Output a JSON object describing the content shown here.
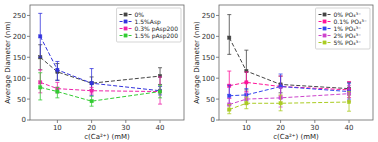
{
  "chart_data": [
    {
      "type": "line",
      "x": [
        5,
        10,
        20,
        40
      ],
      "series": [
        {
          "name": "0%",
          "color": "#444444",
          "marker": "square",
          "line_style": "dashed",
          "values": [
            150,
            115,
            88,
            105
          ],
          "yerr_lo": [
            30,
            20,
            15,
            20
          ],
          "yerr_hi": [
            30,
            20,
            15,
            20
          ]
        },
        {
          "name": "1.5%Asp",
          "color": "#3333dd",
          "marker": "square",
          "line_style": "dashed",
          "values": [
            200,
            120,
            88,
            70
          ],
          "yerr_lo": [
            50,
            25,
            30,
            10
          ],
          "yerr_hi": [
            55,
            20,
            35,
            10
          ]
        },
        {
          "name": "0.3% pAsp200",
          "color": "#ee22aa",
          "marker": "square",
          "line_style": "dashed",
          "values": [
            90,
            75,
            70,
            68
          ],
          "yerr_lo": [
            25,
            10,
            8,
            30
          ],
          "yerr_hi": [
            30,
            15,
            8,
            35
          ]
        },
        {
          "name": "1.5% pAsp200",
          "color": "#33cc33",
          "marker": "square",
          "line_style": "dashed",
          "values": [
            78,
            68,
            45,
            68
          ],
          "yerr_lo": [
            30,
            15,
            12,
            15
          ],
          "yerr_hi": [
            35,
            10,
            12,
            15
          ]
        }
      ],
      "xlabel": "c(Ca²⁺) (mM)",
      "ylabel": "Average Diameter (nm)",
      "xlim": [
        2,
        47
      ],
      "ylim": [
        0,
        275
      ],
      "xticks": [
        10,
        20,
        30,
        40
      ],
      "yticks": [
        0,
        50,
        100,
        150,
        200,
        250
      ],
      "legend": "upper right",
      "grid": false
    },
    {
      "type": "line",
      "x": [
        5,
        10,
        20,
        40
      ],
      "series": [
        {
          "name": "0% PO₄³⁻",
          "color": "#444444",
          "marker": "square",
          "line_style": "dashed",
          "values": [
            197,
            117,
            85,
            75
          ],
          "yerr_lo": [
            40,
            45,
            20,
            15
          ],
          "yerr_hi": [
            55,
            50,
            20,
            15
          ]
        },
        {
          "name": "0.1% PO₄³⁻",
          "color": "#ff1199",
          "marker": "square",
          "line_style": "dashed",
          "values": [
            82,
            90,
            80,
            72
          ],
          "yerr_lo": [
            30,
            22,
            22,
            18
          ],
          "yerr_hi": [
            35,
            25,
            25,
            20
          ]
        },
        {
          "name": "1% PO₄³⁻",
          "color": "#3344ee",
          "marker": "square",
          "line_style": "dashed",
          "values": [
            58,
            60,
            80,
            68
          ],
          "yerr_lo": [
            22,
            14,
            28,
            18
          ],
          "yerr_hi": [
            25,
            15,
            30,
            20
          ]
        },
        {
          "name": "2% PO₄³⁻",
          "color": "#cc44cc",
          "marker": "square",
          "line_style": "dashed",
          "values": [
            37,
            50,
            53,
            63
          ],
          "yerr_lo": [
            13,
            13,
            22,
            18
          ],
          "yerr_hi": [
            15,
            15,
            25,
            20
          ]
        },
        {
          "name": "5% PO₄³⁻",
          "color": "#aacc22",
          "marker": "square",
          "line_style": "dashed",
          "values": [
            25,
            40,
            40,
            43
          ],
          "yerr_lo": [
            10,
            13,
            18,
            22
          ],
          "yerr_hi": [
            12,
            15,
            20,
            25
          ]
        }
      ],
      "xlabel": "c(Ca²⁺) (mM)",
      "ylabel": "Average Diameter (nm)",
      "xlim": [
        2,
        47
      ],
      "ylim": [
        0,
        275
      ],
      "xticks": [
        10,
        20,
        30,
        40
      ],
      "yticks": [
        0,
        50,
        100,
        150,
        200,
        250
      ],
      "legend": "upper right",
      "grid": false
    }
  ]
}
